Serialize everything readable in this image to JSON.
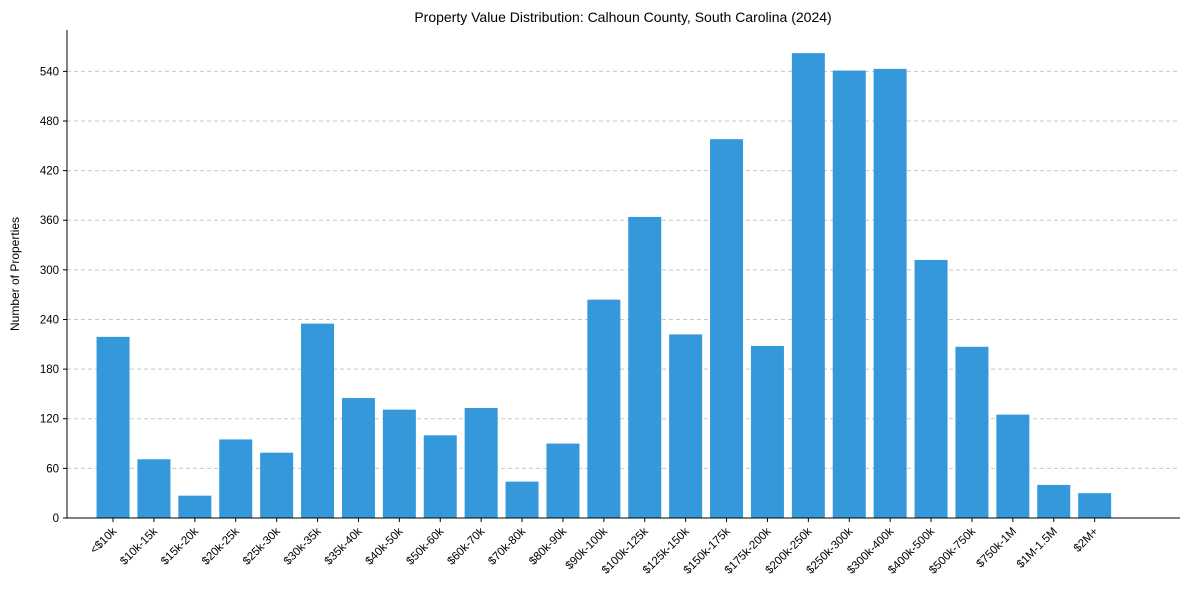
{
  "chart_data": {
    "type": "bar",
    "title": "Property Value Distribution: Calhoun County, South Carolina (2024)",
    "xlabel": "",
    "ylabel": "Number of Properties",
    "categories": [
      "<$10k",
      "$10k-15k",
      "$15k-20k",
      "$20k-25k",
      "$25k-30k",
      "$30k-35k",
      "$35k-40k",
      "$40k-50k",
      "$50k-60k",
      "$60k-70k",
      "$70k-80k",
      "$80k-90k",
      "$90k-100k",
      "$100k-125k",
      "$125k-150k",
      "$150k-175k",
      "$175k-200k",
      "$200k-250k",
      "$250k-300k",
      "$300k-400k",
      "$400k-500k",
      "$500k-750k",
      "$750k-1M",
      "$1M-1.5M",
      "$2M+"
    ],
    "values": [
      219,
      71,
      27,
      95,
      79,
      235,
      145,
      131,
      100,
      133,
      44,
      90,
      264,
      364,
      222,
      458,
      208,
      562,
      541,
      543,
      312,
      207,
      125,
      40,
      30
    ],
    "yticks": [
      0,
      60,
      120,
      180,
      240,
      300,
      360,
      420,
      480,
      540
    ],
    "ylim": [
      0,
      590
    ],
    "grid": "y-dashed",
    "bar_color": "#3498db"
  }
}
